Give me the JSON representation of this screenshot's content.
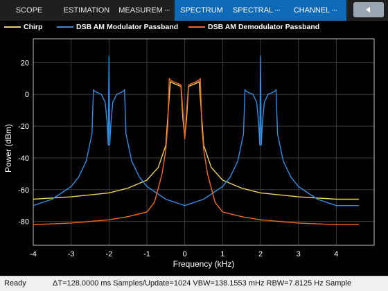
{
  "toolstrip": {
    "tabs": [
      {
        "label": "SCOPE",
        "dots": "",
        "active": false
      },
      {
        "label": "ESTIMATION",
        "dots": "",
        "active": false
      },
      {
        "label": "MEASUREM",
        "dots": "···",
        "active": false
      },
      {
        "label": "SPECTRUM",
        "dots": "",
        "active": true
      },
      {
        "label": "SPECTRAL",
        "dots": "···",
        "active": true
      },
      {
        "label": "CHANNEL",
        "dots": "···",
        "active": true
      }
    ],
    "collapse_icon": "chevron-left-icon"
  },
  "legend": {
    "items": [
      {
        "label": "Chirp",
        "color": "#edd45a"
      },
      {
        "label": "DSB AM Modulator Passband",
        "color": "#2f8fe4"
      },
      {
        "label": "DSB AM Demodulator Passband",
        "color": "#ef6b1f"
      }
    ]
  },
  "chart_data": {
    "type": "line",
    "xlabel": "Frequency (kHz)",
    "ylabel": "Power (dBm)",
    "xlim": [
      -4,
      5
    ],
    "ylim": [
      -95,
      35
    ],
    "xticks": [
      -4,
      -3,
      -2,
      -1,
      0,
      1,
      2,
      3,
      4
    ],
    "yticks": [
      20,
      0,
      -20,
      -40,
      -60,
      -80
    ],
    "grid": true,
    "legend_position": "top",
    "background": "#000000",
    "series": [
      {
        "name": "Chirp",
        "color": "#edd45a",
        "x": [
          -4,
          -3,
          -2,
          -1.5,
          -1,
          -0.7,
          -0.5,
          -0.42,
          -0.38,
          -0.3,
          -0.2,
          -0.1,
          -0.05,
          0,
          0.05,
          0.1,
          0.2,
          0.3,
          0.38,
          0.42,
          0.5,
          0.7,
          1,
          1.5,
          2,
          3,
          4,
          4.6
        ],
        "y": [
          -66,
          -64.5,
          -62,
          -59,
          -54,
          -46,
          -32,
          -5,
          8,
          7,
          6,
          5,
          -15,
          -27,
          -15,
          5,
          6,
          7,
          8,
          -5,
          -32,
          -46,
          -54,
          -59,
          -62,
          -64.5,
          -66,
          -66
        ]
      },
      {
        "name": "DSB AM Modulator Passband",
        "color": "#2f8fe4",
        "x": [
          -4,
          -3.5,
          -3,
          -2.8,
          -2.6,
          -2.45,
          -2.41,
          -2.38,
          -2.3,
          -2.2,
          -2.1,
          -2.05,
          -2.02,
          -2.0,
          -1.98,
          -1.95,
          -1.9,
          -1.8,
          -1.7,
          -1.62,
          -1.59,
          -1.55,
          -1.4,
          -1.2,
          -1,
          -0.5,
          0,
          0.5,
          1,
          1.2,
          1.4,
          1.55,
          1.59,
          1.62,
          1.7,
          1.8,
          1.9,
          1.95,
          1.98,
          2.0,
          2.02,
          2.05,
          2.1,
          2.2,
          2.3,
          2.38,
          2.41,
          2.45,
          2.6,
          2.8,
          3,
          3.5,
          4,
          4.6
        ],
        "y": [
          -70,
          -66,
          -58,
          -52,
          -42,
          -25,
          3,
          2,
          1,
          0,
          -5,
          -18,
          -32,
          24,
          -32,
          -18,
          -5,
          0,
          1,
          2,
          3,
          -25,
          -42,
          -52,
          -58,
          -66,
          -70,
          -66,
          -58,
          -52,
          -42,
          -25,
          3,
          2,
          1,
          0,
          -5,
          -18,
          -32,
          24,
          -32,
          -18,
          -5,
          0,
          1,
          2,
          3,
          -25,
          -42,
          -52,
          -58,
          -66,
          -70,
          -70
        ]
      },
      {
        "name": "DSB AM Demodulator Passband",
        "color": "#ef6b1f",
        "x": [
          -4,
          -3,
          -2,
          -1.5,
          -1,
          -0.8,
          -0.6,
          -0.5,
          -0.45,
          -0.41,
          -0.38,
          -0.3,
          -0.2,
          -0.1,
          -0.05,
          0,
          0.05,
          0.1,
          0.2,
          0.3,
          0.38,
          0.41,
          0.45,
          0.5,
          0.6,
          0.8,
          1,
          1.5,
          2,
          3,
          4,
          4.6
        ],
        "y": [
          -82,
          -81,
          -79,
          -77,
          -74,
          -68,
          -50,
          -35,
          -20,
          10,
          9,
          8,
          7,
          6,
          -10,
          -28,
          -10,
          6,
          7,
          8,
          9,
          10,
          -20,
          -35,
          -50,
          -68,
          -74,
          -77,
          -79,
          -81,
          -82,
          -82
        ]
      }
    ]
  },
  "statusbar": {
    "ready": "Ready",
    "info": "ΔT=128.0000 ms  Samples/Update=1024  VBW=138.1553 mHz  RBW=7.8125 Hz  Sample"
  }
}
